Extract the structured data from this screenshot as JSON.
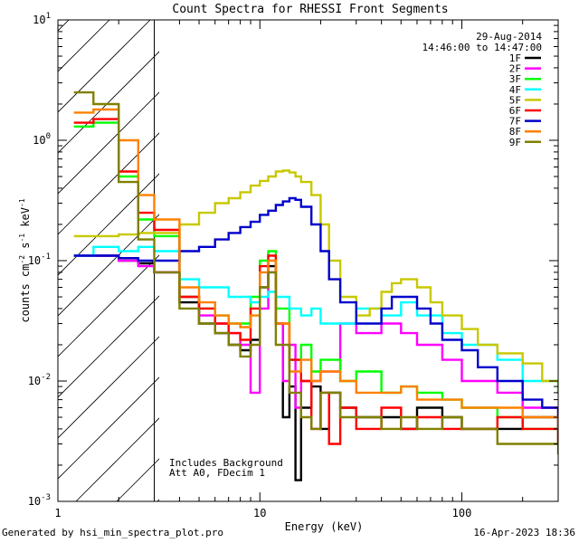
{
  "chart_data": {
    "type": "line",
    "title": "Count Spectra for RHESSI Front Segments",
    "xlabel": "Energy (keV)",
    "ylabel": "counts cm^-2 s^-1 keV^-1",
    "xscale": "log",
    "yscale": "log",
    "xlim": [
      1,
      300
    ],
    "ylim": [
      0.001,
      10
    ],
    "x_ticks": [
      {
        "value": 1,
        "label": "1"
      },
      {
        "value": 10,
        "label": "10"
      },
      {
        "value": 100,
        "label": "100"
      }
    ],
    "y_ticks": [
      {
        "value": 0.001,
        "mantissa": "10",
        "exponent": "-3"
      },
      {
        "value": 0.01,
        "mantissa": "10",
        "exponent": "-2"
      },
      {
        "value": 0.1,
        "mantissa": "10",
        "exponent": "-1"
      },
      {
        "value": 1,
        "mantissa": "10",
        "exponent": "0"
      },
      {
        "value": 10,
        "mantissa": "10",
        "exponent": "1"
      }
    ],
    "attenuator_cutoff_kev": 3,
    "date": "29-Aug-2014",
    "time_range": "14:46:00 to 14:47:00",
    "annotations": [
      "Includes Background",
      "Att A0, FDecim 1"
    ],
    "legend_position": "top-right",
    "series": [
      {
        "name": "1F",
        "color": "#000000",
        "points": [
          [
            1.2,
            0.11
          ],
          [
            1.5,
            0.11
          ],
          [
            2,
            0.1
          ],
          [
            2.5,
            0.095
          ],
          [
            3,
            0.08
          ],
          [
            4,
            0.045
          ],
          [
            5,
            0.03
          ],
          [
            6,
            0.025
          ],
          [
            7,
            0.02
          ],
          [
            8,
            0.018
          ],
          [
            9,
            0.022
          ],
          [
            10,
            0.06
          ],
          [
            11,
            0.09
          ],
          [
            12,
            0.03
          ],
          [
            13,
            0.005
          ],
          [
            14,
            0.009
          ],
          [
            15,
            0.0015
          ],
          [
            16,
            0.006
          ],
          [
            18,
            0.009
          ],
          [
            20,
            0.004
          ],
          [
            22,
            0.008
          ],
          [
            25,
            0.006
          ],
          [
            30,
            0.005
          ],
          [
            40,
            0.005
          ],
          [
            50,
            0.004
          ],
          [
            60,
            0.006
          ],
          [
            80,
            0.005
          ],
          [
            100,
            0.004
          ],
          [
            150,
            0.004
          ],
          [
            200,
            0.005
          ],
          [
            300,
            0.003
          ]
        ]
      },
      {
        "name": "2F",
        "color": "#ff00ff",
        "points": [
          [
            1.2,
            0.11
          ],
          [
            1.5,
            0.11
          ],
          [
            2,
            0.1
          ],
          [
            2.5,
            0.09
          ],
          [
            3,
            0.08
          ],
          [
            4,
            0.05
          ],
          [
            5,
            0.035
          ],
          [
            6,
            0.03
          ],
          [
            7,
            0.025
          ],
          [
            8,
            0.02
          ],
          [
            9,
            0.008
          ],
          [
            10,
            0.04
          ],
          [
            11,
            0.08
          ],
          [
            12,
            0.03
          ],
          [
            13,
            0.01
          ],
          [
            14,
            0.02
          ],
          [
            15,
            0.006
          ],
          [
            16,
            0.01
          ],
          [
            20,
            0.012
          ],
          [
            25,
            0.03
          ],
          [
            30,
            0.025
          ],
          [
            40,
            0.03
          ],
          [
            50,
            0.025
          ],
          [
            60,
            0.02
          ],
          [
            80,
            0.015
          ],
          [
            100,
            0.01
          ],
          [
            150,
            0.008
          ],
          [
            200,
            0.006
          ],
          [
            300,
            0.005
          ]
        ]
      },
      {
        "name": "3F",
        "color": "#00ff00",
        "points": [
          [
            1.2,
            1.3
          ],
          [
            1.5,
            1.4
          ],
          [
            2,
            0.5
          ],
          [
            2.5,
            0.22
          ],
          [
            3,
            0.16
          ],
          [
            4,
            0.05
          ],
          [
            5,
            0.04
          ],
          [
            6,
            0.035
          ],
          [
            7,
            0.03
          ],
          [
            8,
            0.03
          ],
          [
            9,
            0.05
          ],
          [
            10,
            0.1
          ],
          [
            11,
            0.12
          ],
          [
            12,
            0.04
          ],
          [
            14,
            0.015
          ],
          [
            16,
            0.02
          ],
          [
            18,
            0.012
          ],
          [
            20,
            0.015
          ],
          [
            25,
            0.01
          ],
          [
            30,
            0.012
          ],
          [
            40,
            0.008
          ],
          [
            50,
            0.009
          ],
          [
            60,
            0.008
          ],
          [
            80,
            0.007
          ],
          [
            100,
            0.006
          ],
          [
            150,
            0.005
          ],
          [
            200,
            0.004
          ],
          [
            300,
            0.003
          ]
        ]
      },
      {
        "name": "4F",
        "color": "#00ffff",
        "points": [
          [
            1.2,
            0.11
          ],
          [
            1.5,
            0.13
          ],
          [
            2,
            0.12
          ],
          [
            2.5,
            0.13
          ],
          [
            3,
            0.12
          ],
          [
            4,
            0.07
          ],
          [
            5,
            0.06
          ],
          [
            6,
            0.06
          ],
          [
            7,
            0.05
          ],
          [
            8,
            0.05
          ],
          [
            9,
            0.045
          ],
          [
            10,
            0.05
          ],
          [
            11,
            0.055
          ],
          [
            12,
            0.05
          ],
          [
            14,
            0.04
          ],
          [
            16,
            0.035
          ],
          [
            18,
            0.04
          ],
          [
            20,
            0.03
          ],
          [
            25,
            0.03
          ],
          [
            30,
            0.04
          ],
          [
            40,
            0.035
          ],
          [
            50,
            0.045
          ],
          [
            60,
            0.035
          ],
          [
            80,
            0.025
          ],
          [
            100,
            0.02
          ],
          [
            150,
            0.015
          ],
          [
            200,
            0.01
          ],
          [
            300,
            0.008
          ]
        ]
      },
      {
        "name": "5F",
        "color": "#c8c800",
        "points": [
          [
            1.2,
            0.16
          ],
          [
            1.5,
            0.16
          ],
          [
            2,
            0.165
          ],
          [
            2.5,
            0.17
          ],
          [
            3,
            0.17
          ],
          [
            4,
            0.2
          ],
          [
            5,
            0.25
          ],
          [
            6,
            0.3
          ],
          [
            7,
            0.33
          ],
          [
            8,
            0.37
          ],
          [
            9,
            0.42
          ],
          [
            10,
            0.46
          ],
          [
            11,
            0.5
          ],
          [
            12,
            0.55
          ],
          [
            13,
            0.56
          ],
          [
            14,
            0.54
          ],
          [
            15,
            0.5
          ],
          [
            16,
            0.45
          ],
          [
            18,
            0.35
          ],
          [
            20,
            0.2
          ],
          [
            22,
            0.1
          ],
          [
            25,
            0.05
          ],
          [
            30,
            0.035
          ],
          [
            35,
            0.04
          ],
          [
            40,
            0.055
          ],
          [
            45,
            0.065
          ],
          [
            50,
            0.07
          ],
          [
            60,
            0.06
          ],
          [
            70,
            0.045
          ],
          [
            80,
            0.035
          ],
          [
            100,
            0.027
          ],
          [
            120,
            0.02
          ],
          [
            150,
            0.017
          ],
          [
            200,
            0.014
          ],
          [
            250,
            0.01
          ],
          [
            300,
            0.008
          ]
        ]
      },
      {
        "name": "6F",
        "color": "#ff0000",
        "points": [
          [
            1.2,
            1.4
          ],
          [
            1.5,
            1.5
          ],
          [
            2,
            0.55
          ],
          [
            2.5,
            0.25
          ],
          [
            3,
            0.18
          ],
          [
            4,
            0.05
          ],
          [
            5,
            0.04
          ],
          [
            6,
            0.03
          ],
          [
            7,
            0.025
          ],
          [
            8,
            0.022
          ],
          [
            9,
            0.04
          ],
          [
            10,
            0.09
          ],
          [
            11,
            0.11
          ],
          [
            12,
            0.03
          ],
          [
            14,
            0.015
          ],
          [
            16,
            0.01
          ],
          [
            18,
            0.004
          ],
          [
            20,
            0.008
          ],
          [
            22,
            0.003
          ],
          [
            25,
            0.006
          ],
          [
            30,
            0.004
          ],
          [
            40,
            0.006
          ],
          [
            50,
            0.004
          ],
          [
            60,
            0.005
          ],
          [
            80,
            0.004
          ],
          [
            100,
            0.004
          ],
          [
            150,
            0.005
          ],
          [
            200,
            0.004
          ],
          [
            300,
            0.003
          ]
        ]
      },
      {
        "name": "7F",
        "color": "#0000cc",
        "points": [
          [
            1.2,
            0.11
          ],
          [
            1.5,
            0.11
          ],
          [
            2,
            0.105
          ],
          [
            2.5,
            0.1
          ],
          [
            3,
            0.1
          ],
          [
            4,
            0.12
          ],
          [
            5,
            0.13
          ],
          [
            6,
            0.15
          ],
          [
            7,
            0.17
          ],
          [
            8,
            0.19
          ],
          [
            9,
            0.21
          ],
          [
            10,
            0.24
          ],
          [
            11,
            0.26
          ],
          [
            12,
            0.29
          ],
          [
            13,
            0.31
          ],
          [
            14,
            0.33
          ],
          [
            15,
            0.32
          ],
          [
            16,
            0.28
          ],
          [
            18,
            0.2
          ],
          [
            20,
            0.12
          ],
          [
            22,
            0.07
          ],
          [
            25,
            0.045
          ],
          [
            30,
            0.03
          ],
          [
            35,
            0.03
          ],
          [
            40,
            0.04
          ],
          [
            45,
            0.05
          ],
          [
            50,
            0.05
          ],
          [
            60,
            0.04
          ],
          [
            70,
            0.03
          ],
          [
            80,
            0.022
          ],
          [
            100,
            0.018
          ],
          [
            120,
            0.013
          ],
          [
            150,
            0.01
          ],
          [
            200,
            0.007
          ],
          [
            250,
            0.006
          ],
          [
            300,
            0.004
          ]
        ]
      },
      {
        "name": "8F",
        "color": "#ff8000",
        "points": [
          [
            1.2,
            1.7
          ],
          [
            1.5,
            1.8
          ],
          [
            2,
            1.0
          ],
          [
            2.5,
            0.35
          ],
          [
            3,
            0.22
          ],
          [
            4,
            0.06
          ],
          [
            5,
            0.045
          ],
          [
            6,
            0.035
          ],
          [
            7,
            0.03
          ],
          [
            8,
            0.028
          ],
          [
            9,
            0.035
          ],
          [
            10,
            0.08
          ],
          [
            11,
            0.1
          ],
          [
            12,
            0.03
          ],
          [
            14,
            0.012
          ],
          [
            16,
            0.015
          ],
          [
            18,
            0.01
          ],
          [
            20,
            0.012
          ],
          [
            25,
            0.01
          ],
          [
            30,
            0.008
          ],
          [
            40,
            0.008
          ],
          [
            50,
            0.009
          ],
          [
            60,
            0.007
          ],
          [
            80,
            0.007
          ],
          [
            100,
            0.006
          ],
          [
            150,
            0.006
          ],
          [
            200,
            0.005
          ],
          [
            300,
            0.004
          ]
        ]
      },
      {
        "name": "9F",
        "color": "#808000",
        "points": [
          [
            1.2,
            2.5
          ],
          [
            1.5,
            2.0
          ],
          [
            2,
            0.45
          ],
          [
            2.5,
            0.15
          ],
          [
            3,
            0.08
          ],
          [
            4,
            0.04
          ],
          [
            5,
            0.03
          ],
          [
            6,
            0.025
          ],
          [
            7,
            0.02
          ],
          [
            8,
            0.016
          ],
          [
            9,
            0.02
          ],
          [
            10,
            0.06
          ],
          [
            11,
            0.08
          ],
          [
            12,
            0.02
          ],
          [
            14,
            0.008
          ],
          [
            16,
            0.005
          ],
          [
            18,
            0.004
          ],
          [
            20,
            0.008
          ],
          [
            25,
            0.005
          ],
          [
            30,
            0.005
          ],
          [
            40,
            0.004
          ],
          [
            50,
            0.005
          ],
          [
            60,
            0.004
          ],
          [
            80,
            0.005
          ],
          [
            100,
            0.004
          ],
          [
            150,
            0.003
          ],
          [
            200,
            0.003
          ],
          [
            300,
            0.0025
          ]
        ]
      }
    ]
  },
  "footer": {
    "generated_by": "Generated by hsi_min_spectra_plot.pro",
    "timestamp": "16-Apr-2023 18:36"
  }
}
